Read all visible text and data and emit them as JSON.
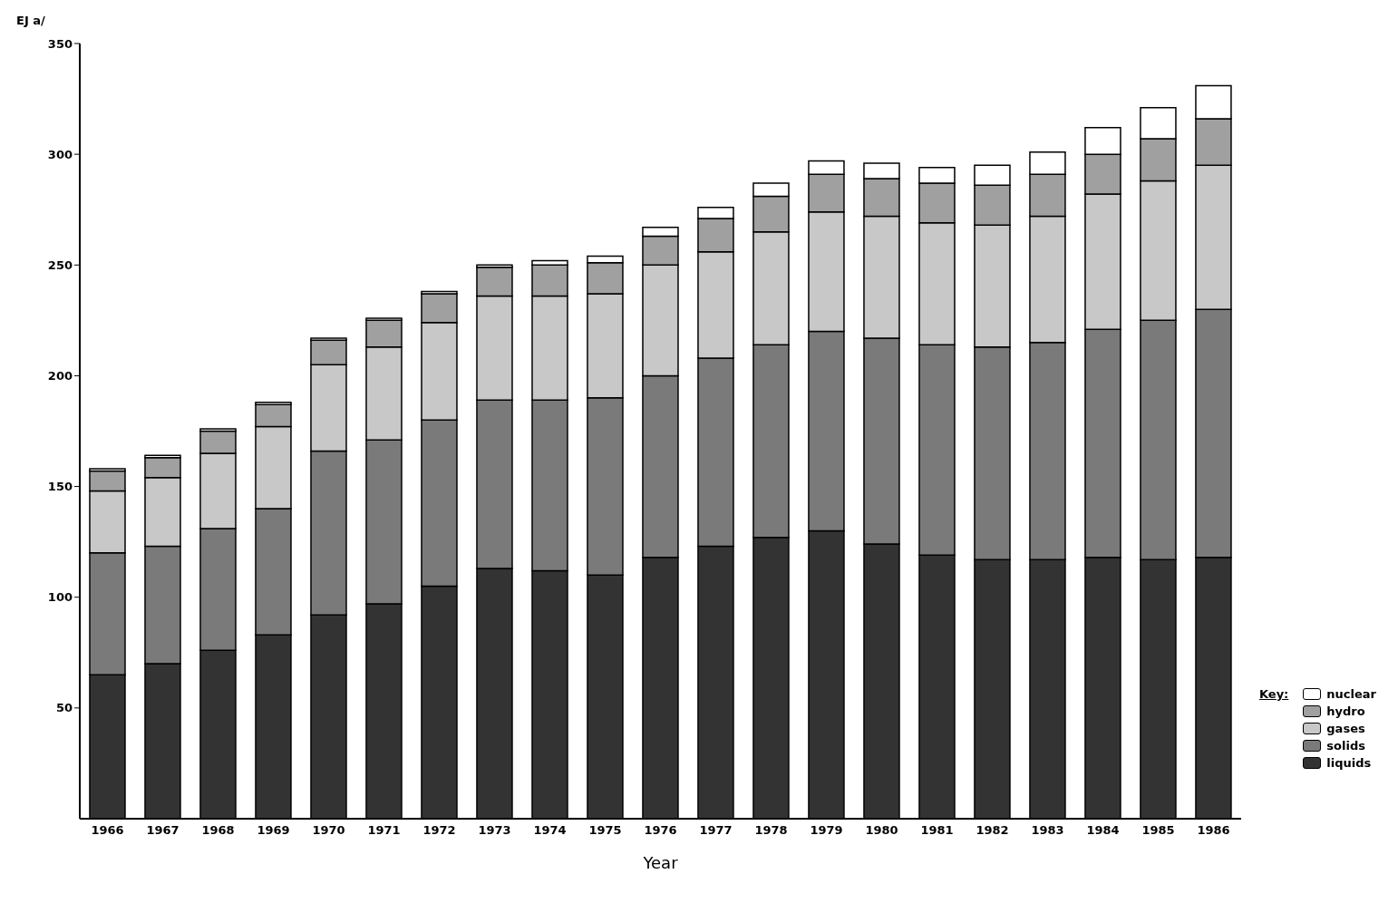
{
  "chart_data": {
    "type": "bar",
    "stacked": true,
    "xlabel": "Year",
    "ylabel": "EJ a/",
    "legend_title": "Key:",
    "legend": "right",
    "categories": [
      "1966",
      "1967",
      "1968",
      "1969",
      "1970",
      "1971",
      "1972",
      "1973",
      "1974",
      "1975",
      "1976",
      "1977",
      "1978",
      "1979",
      "1980",
      "1981",
      "1982",
      "1983",
      "1984",
      "1985",
      "1986"
    ],
    "series": [
      {
        "name": "liquids",
        "color": "#333333",
        "values": [
          65,
          70,
          76,
          83,
          92,
          97,
          105,
          113,
          112,
          110,
          118,
          123,
          127,
          130,
          124,
          119,
          117,
          117,
          118,
          117,
          118
        ]
      },
      {
        "name": "solids",
        "color": "#7a7a7a",
        "values": [
          55,
          53,
          55,
          57,
          74,
          74,
          75,
          76,
          77,
          80,
          82,
          85,
          87,
          90,
          93,
          95,
          96,
          98,
          103,
          108,
          112
        ]
      },
      {
        "name": "gases",
        "color": "#c8c8c8",
        "values": [
          28,
          31,
          34,
          37,
          39,
          42,
          44,
          47,
          47,
          47,
          50,
          48,
          51,
          54,
          55,
          55,
          55,
          57,
          61,
          63,
          65
        ]
      },
      {
        "name": "hydro",
        "color": "#a0a0a0",
        "values": [
          9,
          9,
          10,
          10,
          11,
          12,
          13,
          13,
          14,
          14,
          13,
          15,
          16,
          17,
          17,
          18,
          18,
          19,
          18,
          19,
          21
        ]
      },
      {
        "name": "nuclear",
        "color": "#ffffff",
        "values": [
          1,
          1,
          1,
          1,
          1,
          1,
          1,
          1,
          2,
          3,
          4,
          5,
          6,
          6,
          7,
          7,
          9,
          10,
          12,
          14,
          15
        ]
      }
    ],
    "ylim": [
      0,
      350
    ],
    "yticks": [
      50,
      100,
      150,
      200,
      250,
      300,
      350
    ],
    "grid": false
  }
}
